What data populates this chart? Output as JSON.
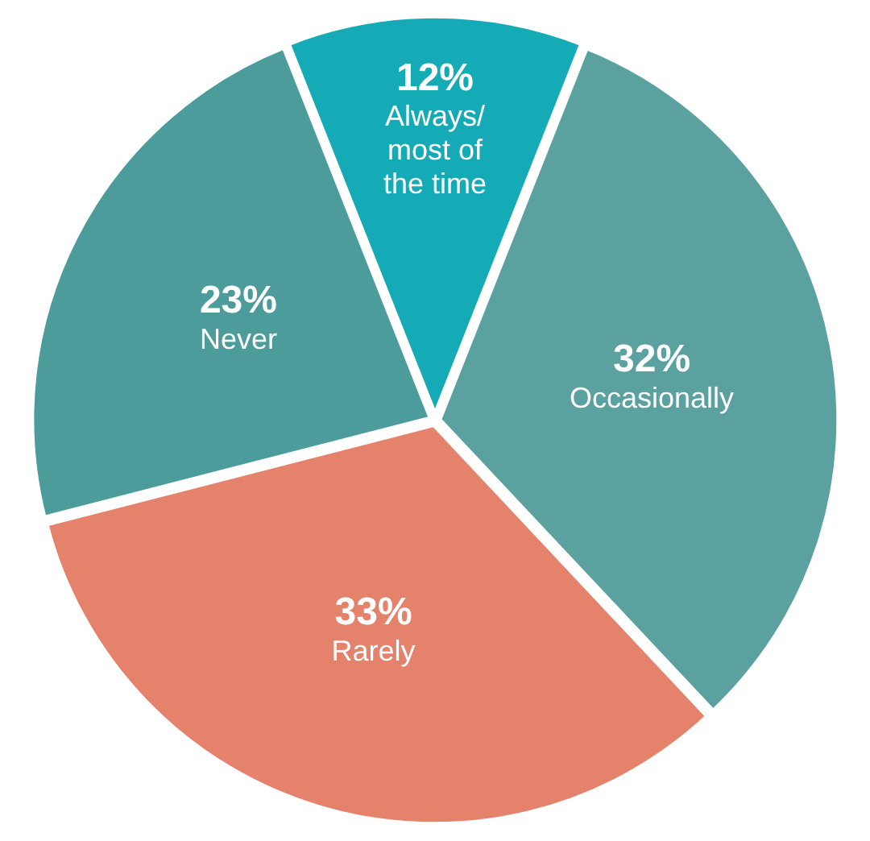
{
  "chart_data": {
    "type": "pie",
    "categories": [
      "Always/ most of the time",
      "Occasionally",
      "Rarely",
      "Never"
    ],
    "values": [
      12,
      32,
      33,
      23
    ],
    "value_labels": [
      "12%",
      "32%",
      "33%",
      "23%"
    ],
    "colors": [
      "#14aab6",
      "#5aa19f",
      "#e4826c",
      "#4d9c9c"
    ],
    "legend": false
  }
}
